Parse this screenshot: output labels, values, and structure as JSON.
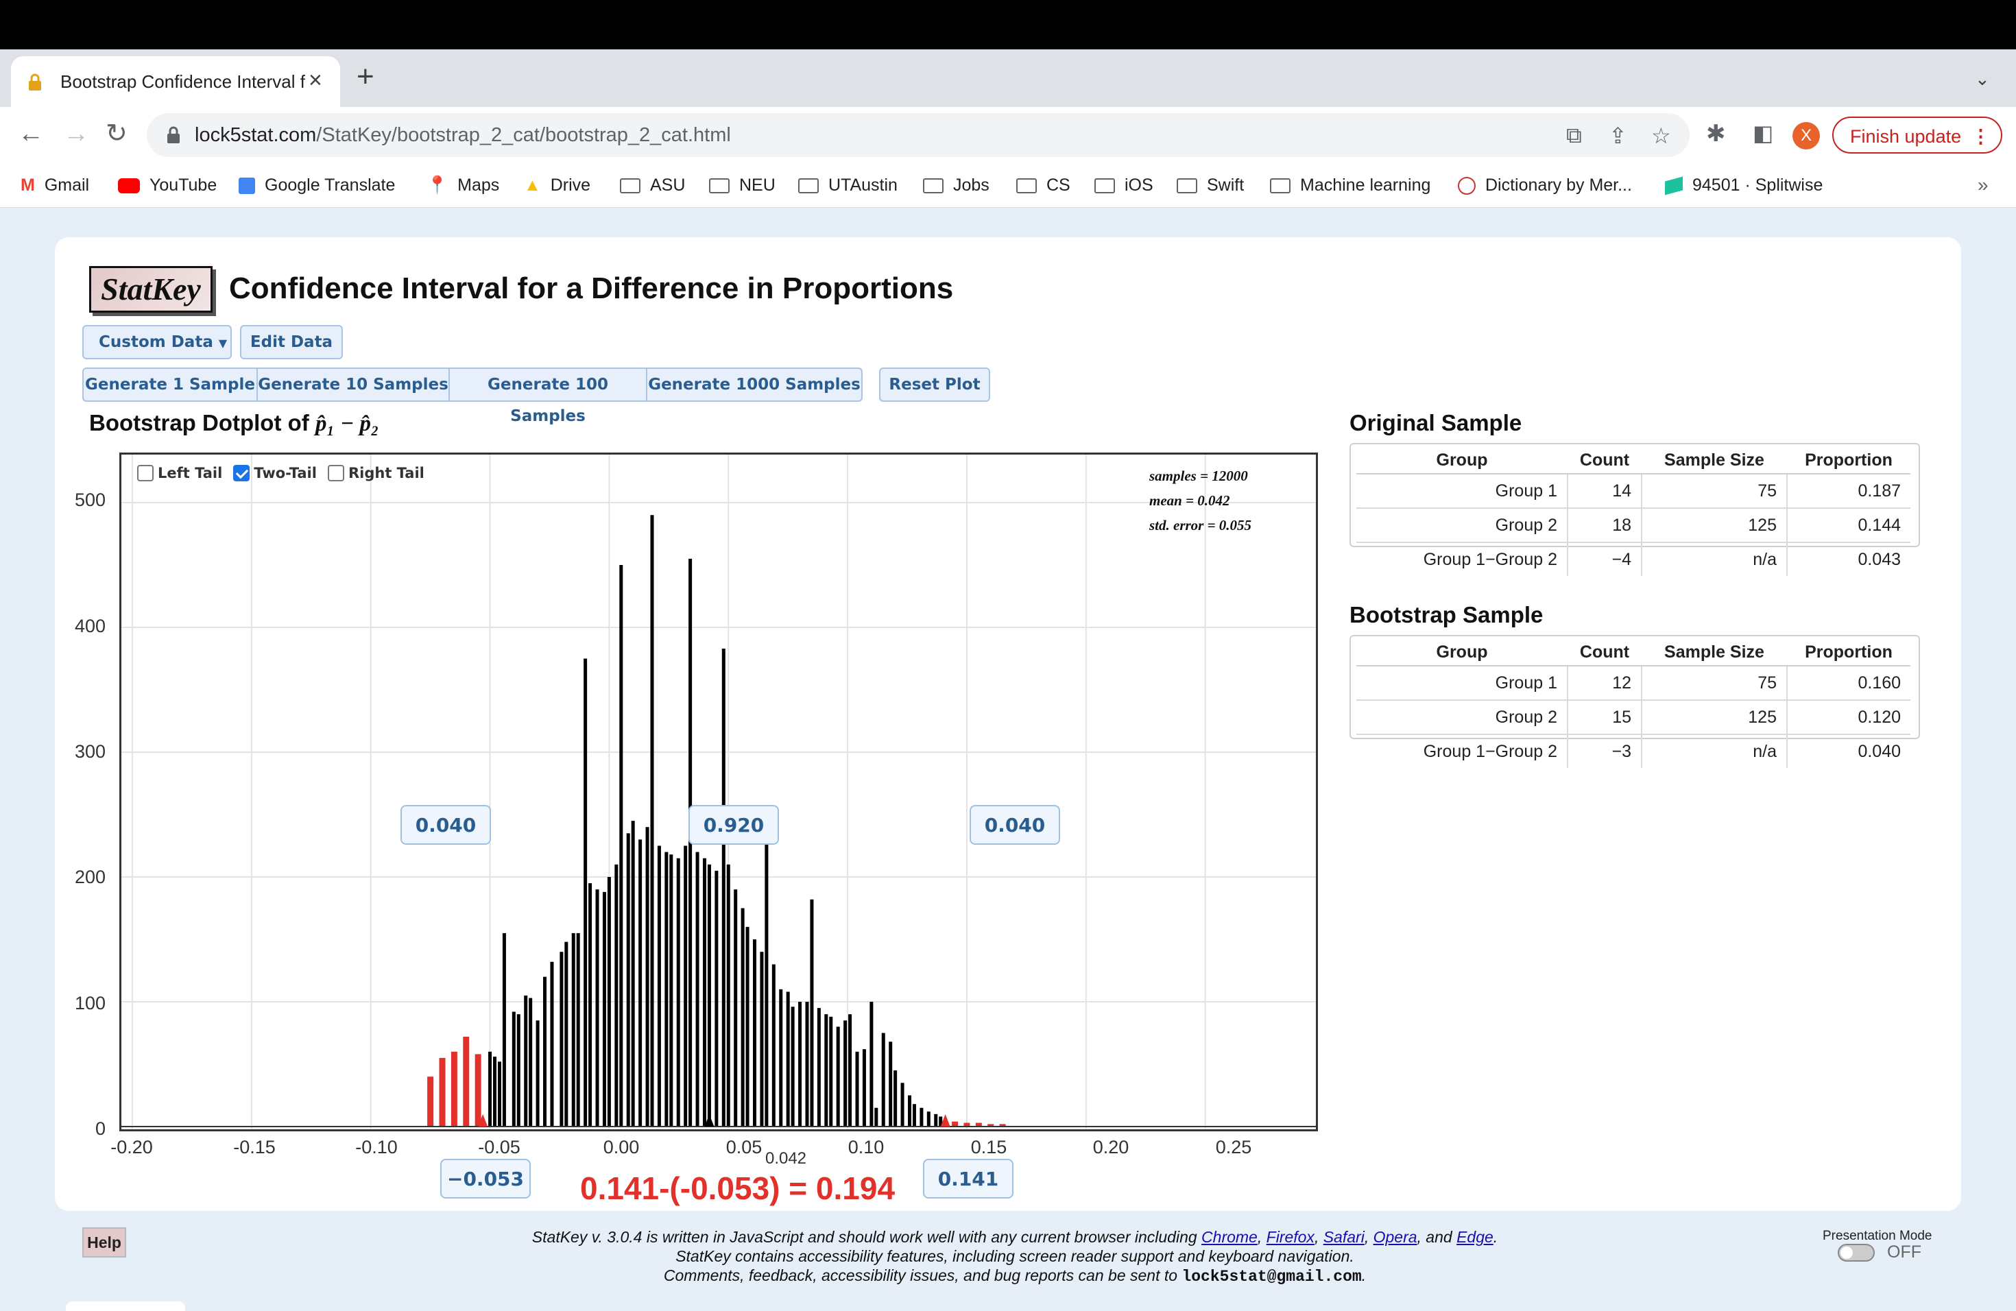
{
  "browser": {
    "tab_title": "Bootstrap Confidence Interval f",
    "url_host": "lock5stat.com",
    "url_path": "/StatKey/bootstrap_2_cat/bootstrap_2_cat.html",
    "profile_initial": "X",
    "finish_update_label": "Finish update",
    "bookmarks": [
      "Gmail",
      "YouTube",
      "Google Translate",
      "Maps",
      "Drive",
      "ASU",
      "NEU",
      "UTAustin",
      "Jobs",
      "CS",
      "iOS",
      "Swift",
      "Machine learning",
      "Dictionary by Mer...",
      "94501 · Splitwise"
    ]
  },
  "app": {
    "logo": "StatKey",
    "title": "Confidence Interval for a Difference in Proportions",
    "custom_data_label": "Custom Data",
    "edit_data_label": "Edit Data",
    "generate_buttons": [
      "Generate 1 Sample",
      "Generate 10 Samples",
      "Generate 100 Samples",
      "Generate 1000 Samples"
    ],
    "reset_label": "Reset Plot"
  },
  "plot": {
    "title_prefix": "Bootstrap Dotplot of",
    "title_formula": "p̂₁ − p̂₂",
    "tail_options": [
      "Left Tail",
      "Two-Tail",
      "Right Tail"
    ],
    "selected_tail": "Two-Tail",
    "stats": [
      "samples = 12000",
      "mean = 0.042",
      "std. error = 0.055"
    ],
    "proportions": [
      "0.040",
      "0.920",
      "0.040"
    ],
    "ci_lower": "−0.053",
    "ci_upper": "0.141",
    "mean_label": "0.042",
    "ci_width_text": "0.141-(-0.053) = 0.194"
  },
  "chart_data": {
    "type": "bar",
    "xlim": [
      -0.2,
      0.28
    ],
    "ylim": [
      0,
      500
    ],
    "x_ticks": [
      "-0.20",
      "-0.15",
      "-0.10",
      "-0.05",
      "0.00",
      "0.05",
      "0.10",
      "0.15",
      "0.20",
      "0.25"
    ],
    "y_ticks": [
      "0",
      "100",
      "200",
      "300",
      "400",
      "500"
    ],
    "ci": [
      -0.053,
      0.141
    ],
    "colors": {
      "inside": "#000000",
      "tail": "#e2302a"
    },
    "x": [
      -0.075,
      -0.07,
      -0.065,
      -0.06,
      -0.055,
      -0.05,
      -0.048,
      -0.046,
      -0.044,
      -0.04,
      -0.038,
      -0.035,
      -0.033,
      -0.03,
      -0.027,
      -0.024,
      -0.02,
      -0.018,
      -0.015,
      -0.013,
      -0.01,
      -0.008,
      -0.005,
      -0.002,
      0.0,
      0.003,
      0.005,
      0.008,
      0.01,
      0.013,
      0.016,
      0.018,
      0.021,
      0.024,
      0.026,
      0.029,
      0.032,
      0.034,
      0.037,
      0.04,
      0.042,
      0.045,
      0.048,
      0.05,
      0.053,
      0.056,
      0.058,
      0.061,
      0.064,
      0.066,
      0.069,
      0.072,
      0.075,
      0.077,
      0.08,
      0.083,
      0.085,
      0.088,
      0.091,
      0.093,
      0.096,
      0.099,
      0.101,
      0.104,
      0.107,
      0.11,
      0.112,
      0.115,
      0.118,
      0.12,
      0.123,
      0.126,
      0.128,
      0.131,
      0.134,
      0.137,
      0.139,
      0.141,
      0.145,
      0.15,
      0.155,
      0.16,
      0.165
    ],
    "values": [
      40,
      55,
      60,
      72,
      58,
      60,
      56,
      52,
      155,
      92,
      90,
      105,
      103,
      85,
      120,
      132,
      140,
      148,
      155,
      155,
      375,
      195,
      190,
      188,
      200,
      210,
      450,
      235,
      245,
      230,
      240,
      490,
      225,
      220,
      218,
      215,
      225,
      455,
      220,
      215,
      210,
      205,
      383,
      210,
      190,
      175,
      160,
      150,
      140,
      248,
      130,
      110,
      108,
      96,
      100,
      100,
      182,
      95,
      90,
      88,
      80,
      85,
      90,
      60,
      62,
      100,
      15,
      75,
      68,
      45,
      35,
      25,
      18,
      15,
      12,
      10,
      8,
      5,
      4,
      3,
      3,
      2,
      2
    ]
  },
  "original_sample": {
    "title": "Original Sample",
    "headers": [
      "Group",
      "Count",
      "Sample Size",
      "Proportion"
    ],
    "rows": [
      [
        "Group 1",
        "14",
        "75",
        "0.187"
      ],
      [
        "Group 2",
        "18",
        "125",
        "0.144"
      ],
      [
        "Group 1−Group 2",
        "−4",
        "n/a",
        "0.043"
      ]
    ]
  },
  "bootstrap_sample": {
    "title": "Bootstrap Sample",
    "headers": [
      "Group",
      "Count",
      "Sample Size",
      "Proportion"
    ],
    "rows": [
      [
        "Group 1",
        "12",
        "75",
        "0.160"
      ],
      [
        "Group 2",
        "15",
        "125",
        "0.120"
      ],
      [
        "Group 1−Group 2",
        "−3",
        "n/a",
        "0.040"
      ]
    ]
  },
  "footer": {
    "help_label": "Help",
    "line1_prefix": "StatKey v. 3.0.4 is written in JavaScript and should work well with any current browser including",
    "browsers": [
      "Chrome",
      "Firefox",
      "Safari",
      "Opera",
      "Edge"
    ],
    "line2": "StatKey contains accessibility features, including screen reader support and keyboard navigation.",
    "line3_prefix": "Comments, feedback, accessibility issues, and bug reports can be sent to",
    "email": "lock5stat@gmail.com",
    "presentation_label": "Presentation Mode",
    "presentation_state": "OFF"
  }
}
